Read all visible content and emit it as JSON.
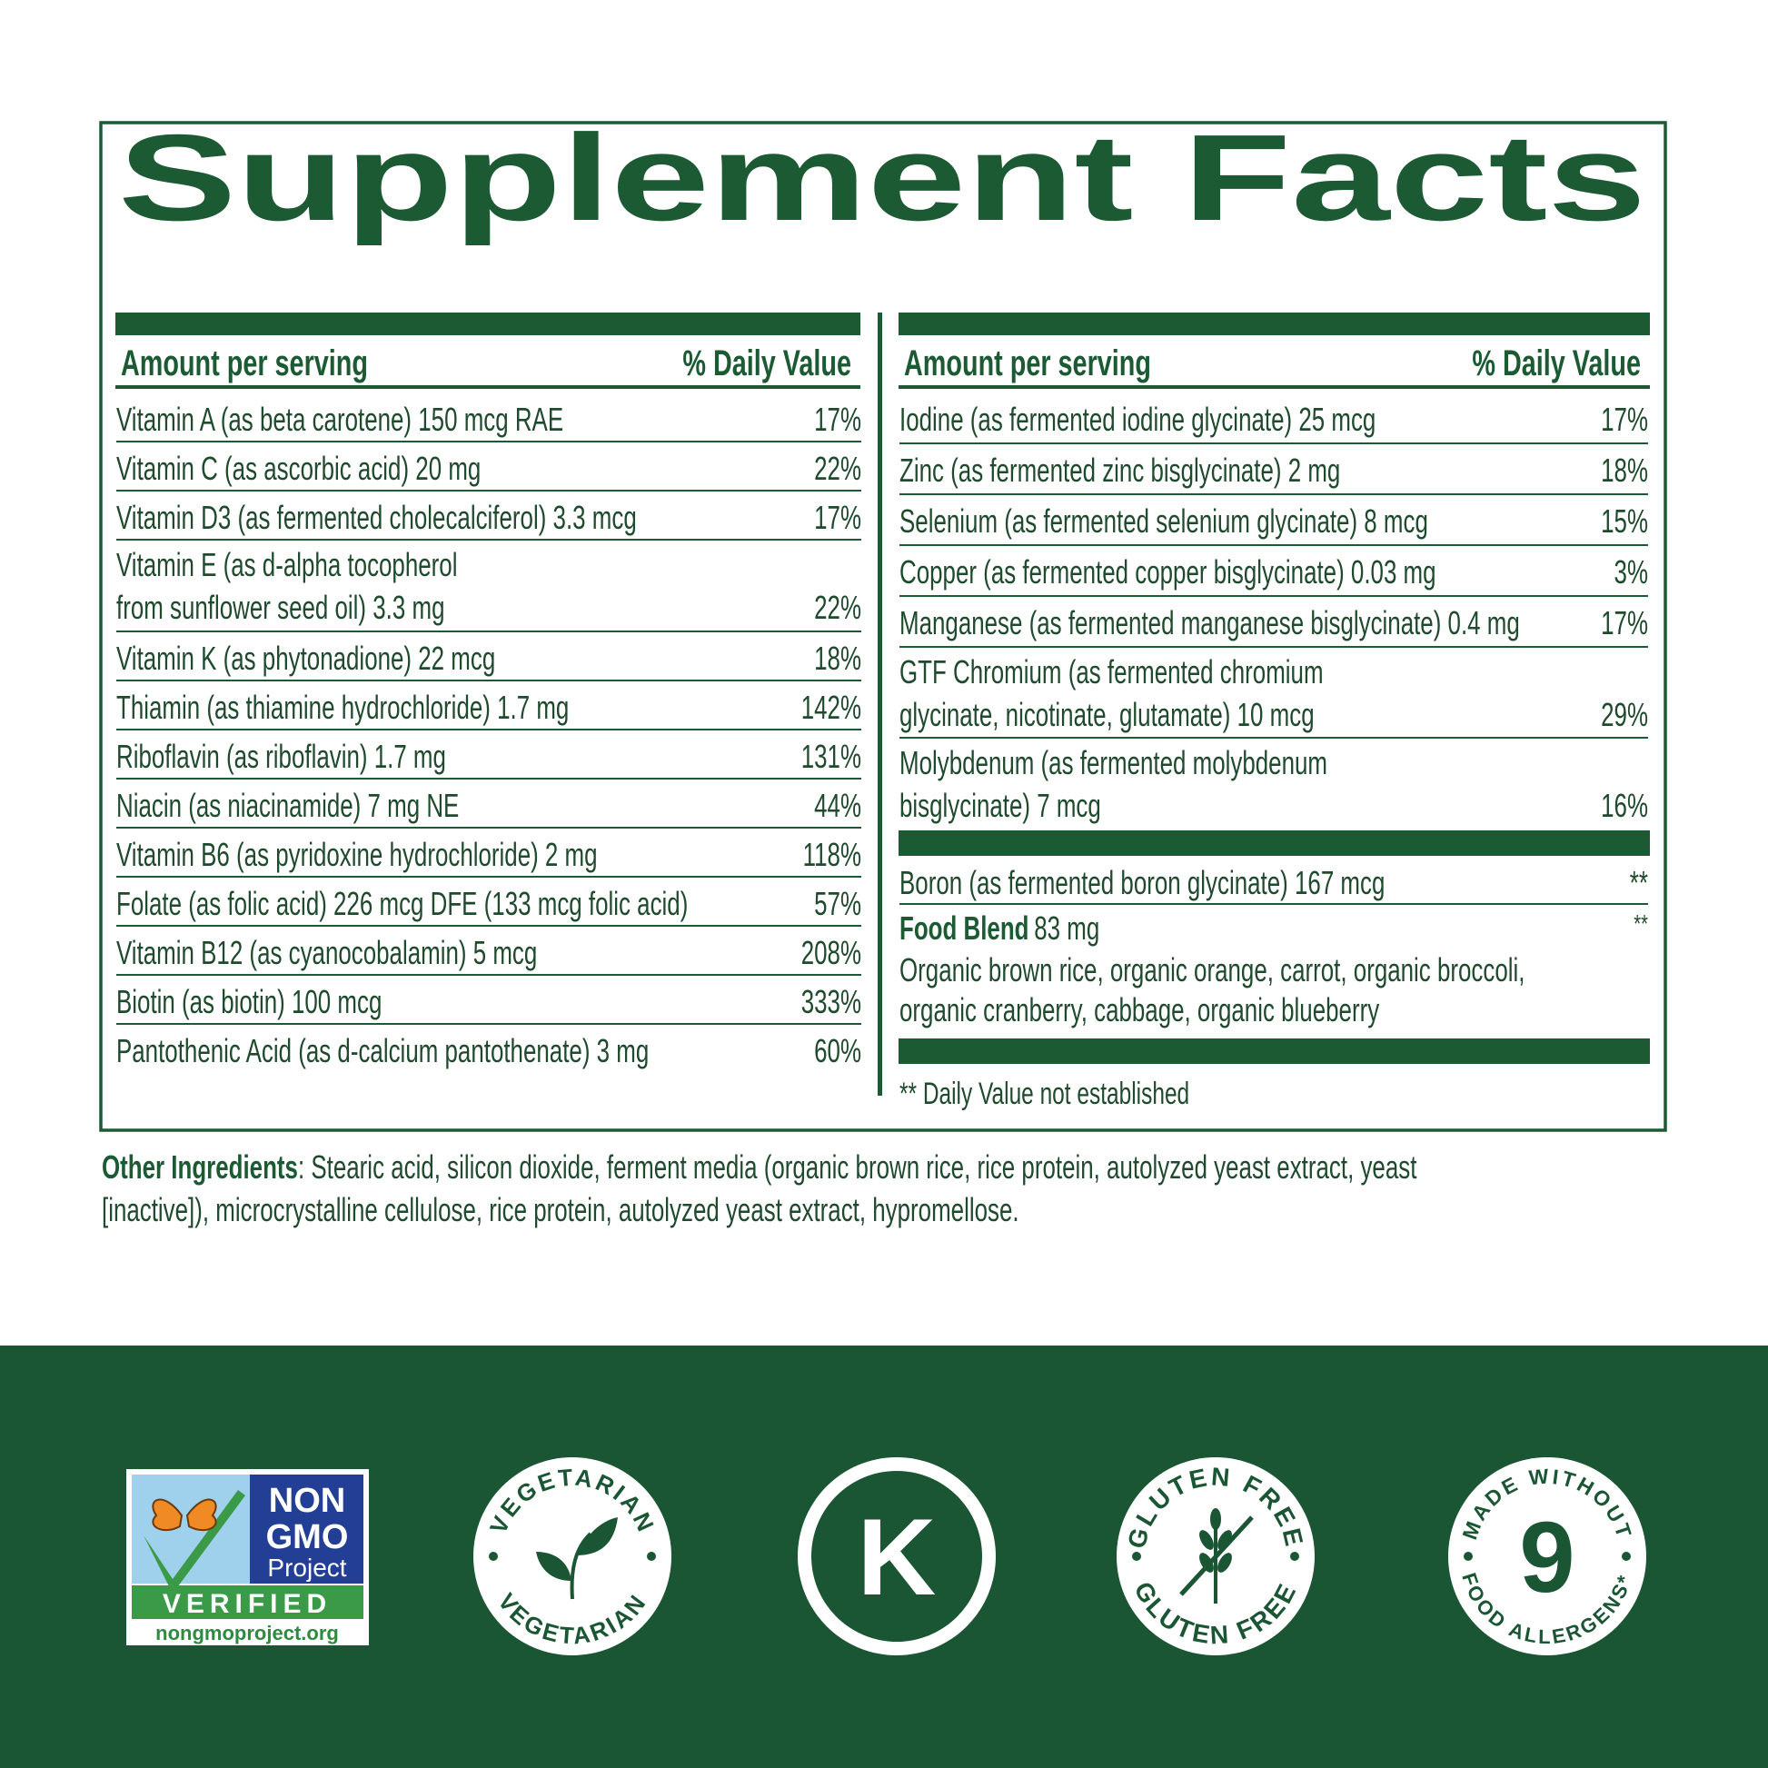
{
  "title": "Supplement Facts",
  "left": {
    "header": {
      "amount": "Amount per serving",
      "dv": "% Daily Value"
    },
    "rows": [
      {
        "lines": [
          "Vitamin A (as beta carotene) 150 mcg RAE"
        ],
        "dv": "17%"
      },
      {
        "lines": [
          "Vitamin C (as ascorbic acid) 20 mg"
        ],
        "dv": "22%"
      },
      {
        "lines": [
          "Vitamin D3 (as fermented cholecalciferol) 3.3 mcg"
        ],
        "dv": "17%"
      },
      {
        "lines": [
          "Vitamin E (as d-alpha tocopherol",
          "from sunflower seed oil) 3.3 mg"
        ],
        "dv": "22%"
      },
      {
        "lines": [
          "Vitamin K (as phytonadione) 22 mcg"
        ],
        "dv": "18%"
      },
      {
        "lines": [
          "Thiamin (as thiamine hydrochloride) 1.7 mg"
        ],
        "dv": "142%"
      },
      {
        "lines": [
          "Riboflavin (as riboflavin) 1.7 mg"
        ],
        "dv": "131%"
      },
      {
        "lines": [
          "Niacin (as niacinamide) 7 mg NE"
        ],
        "dv": "44%"
      },
      {
        "lines": [
          "Vitamin B6 (as pyridoxine hydrochloride) 2 mg"
        ],
        "dv": "118%"
      },
      {
        "lines": [
          "Folate (as folic acid) 226 mcg DFE (133 mcg folic acid)"
        ],
        "dv": "57%"
      },
      {
        "lines": [
          "Vitamin B12 (as cyanocobalamin) 5 mcg"
        ],
        "dv": "208%"
      },
      {
        "lines": [
          "Biotin (as biotin) 100 mcg"
        ],
        "dv": "333%"
      },
      {
        "lines": [
          "Pantothenic Acid (as d-calcium pantothenate) 3 mg"
        ],
        "dv": "60%"
      }
    ]
  },
  "right": {
    "header": {
      "amount": "Amount per serving",
      "dv": "% Daily Value"
    },
    "rows": [
      {
        "lines": [
          "Iodine (as fermented iodine glycinate) 25 mcg"
        ],
        "dv": "17%"
      },
      {
        "lines": [
          "Zinc (as fermented zinc bisglycinate) 2 mg"
        ],
        "dv": "18%"
      },
      {
        "lines": [
          "Selenium (as fermented selenium glycinate) 8 mcg"
        ],
        "dv": "15%"
      },
      {
        "lines": [
          "Copper (as fermented copper bisglycinate) 0.03 mg"
        ],
        "dv": "3%"
      },
      {
        "lines": [
          "Manganese (as fermented manganese bisglycinate) 0.4 mg"
        ],
        "dv": "17%"
      },
      {
        "lines": [
          "GTF Chromium (as fermented chromium",
          "glycinate, nicotinate, glutamate) 10 mcg"
        ],
        "dv": "29%"
      },
      {
        "lines": [
          "Molybdenum (as fermented molybdenum",
          "bisglycinate) 7 mcg"
        ],
        "dv": "16%"
      }
    ],
    "unestablished_rows": [
      {
        "lines": [
          "Boron (as fermented boron glycinate) 167 mcg"
        ],
        "dv": "**"
      }
    ],
    "food_blend": {
      "name": "Food Blend",
      "amount": "83 mg",
      "dv": "**",
      "description": [
        "Organic brown rice, organic orange, carrot, organic broccoli,",
        "organic cranberry, cabbage, organic blueberry"
      ]
    },
    "footnote": "** Daily Value not established"
  },
  "other_ingredients": {
    "label": "Other Ingredients",
    "lines": [
      ": Stearic acid, silicon dioxide, ferment media (organic brown rice, rice protein, autolyzed yeast extract, yeast",
      "[inactive]), microcrystalline cellulose, rice protein, autolyzed yeast extract, hypromellose."
    ]
  },
  "badges": {
    "non_gmo": {
      "lines": [
        "NON",
        "GMO",
        "Project"
      ],
      "verified": "VERIFIED",
      "url": "nongmoproject.org"
    },
    "vegetarian": {
      "top": "VEGETARIAN",
      "bottom": "VEGETARIAN"
    },
    "kosher": "K",
    "gluten_free": {
      "top": "GLUTEN FREE",
      "bottom": "GLUTEN FREE"
    },
    "allergen_free": {
      "top": "MADE WITHOUT",
      "number": "9",
      "bottom": "FOOD ALLERGENS*"
    }
  }
}
